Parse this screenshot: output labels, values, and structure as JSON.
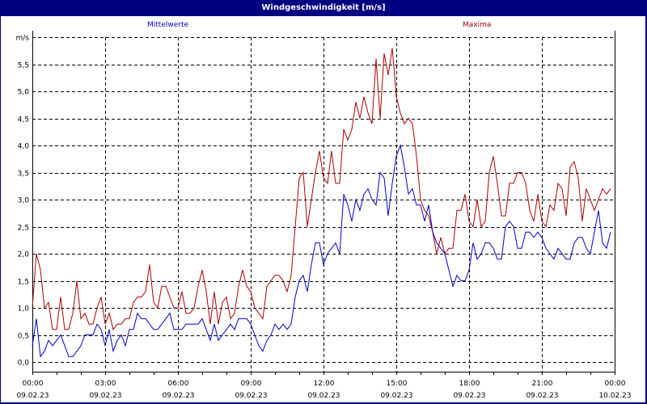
{
  "window": {
    "title": "Windgeschwindigkeit [m/s]"
  },
  "colors": {
    "frame": "#000080",
    "mean": "#0000cc",
    "max": "#aa0000",
    "grid": "#000000"
  },
  "chart_data": {
    "type": "line",
    "title": "Windgeschwindigkeit [m/s]",
    "xlabel": "",
    "ylabel": "m/s",
    "ylim": [
      0,
      6
    ],
    "grid": true,
    "legend_position": "top",
    "y_ticks": [
      "0,0",
      "0,5",
      "1,0",
      "1,5",
      "2,0",
      "2,5",
      "3,0",
      "3,5",
      "4,0",
      "4,5",
      "5,0",
      "5,5",
      "m/s"
    ],
    "x_ticks": [
      {
        "time": "00:00",
        "date": "09.02.23"
      },
      {
        "time": "03:00",
        "date": "09.02.23"
      },
      {
        "time": "06:00",
        "date": "09.02.23"
      },
      {
        "time": "09:00",
        "date": "09.02.23"
      },
      {
        "time": "12:00",
        "date": "09.02.23"
      },
      {
        "time": "15:00",
        "date": "09.02.23"
      },
      {
        "time": "18:00",
        "date": "09.02.23"
      },
      {
        "time": "21:00",
        "date": "09.02.23"
      },
      {
        "time": "00:00",
        "date": "10.02.23"
      }
    ],
    "x_interval_minutes": 10,
    "series": [
      {
        "name": "Mittelwerte",
        "color": "#0000cc",
        "values": [
          0.3,
          0.8,
          0.1,
          0.2,
          0.4,
          0.3,
          0.4,
          0.5,
          0.3,
          0.1,
          0.1,
          0.2,
          0.3,
          0.5,
          0.5,
          0.5,
          0.7,
          0.6,
          0.3,
          0.6,
          0.2,
          0.4,
          0.5,
          0.3,
          0.6,
          0.6,
          0.9,
          0.8,
          0.8,
          0.7,
          0.6,
          0.6,
          0.7,
          0.8,
          0.9,
          0.6,
          0.6,
          0.6,
          0.7,
          0.7,
          0.7,
          0.7,
          0.8,
          0.6,
          0.4,
          0.7,
          0.4,
          0.5,
          0.6,
          0.7,
          0.6,
          0.8,
          0.8,
          0.8,
          0.7,
          0.5,
          0.3,
          0.2,
          0.4,
          0.5,
          0.7,
          0.6,
          0.7,
          0.6,
          0.7,
          1.2,
          1.5,
          1.6,
          1.3,
          1.8,
          2.2,
          2.2,
          1.8,
          2.0,
          2.1,
          2.2,
          2.0,
          3.1,
          2.9,
          2.6,
          3.0,
          2.8,
          3.1,
          3.2,
          3.0,
          2.9,
          3.5,
          3.4,
          2.7,
          3.3,
          3.8,
          4.0,
          3.6,
          3.1,
          3.2,
          2.9,
          2.9,
          2.6,
          2.9,
          2.4,
          2.2,
          2.1,
          2.0,
          1.7,
          1.4,
          1.6,
          1.5,
          1.5,
          1.7,
          2.2,
          1.9,
          2.0,
          2.2,
          2.2,
          2.1,
          1.9,
          1.9,
          2.5,
          2.6,
          2.5,
          2.1,
          2.1,
          2.4,
          2.4,
          2.3,
          2.4,
          2.3,
          2.1,
          2.0,
          1.9,
          2.1,
          2.0,
          1.9,
          1.9,
          2.2,
          2.3,
          2.3,
          2.1,
          2.0,
          2.4,
          2.8,
          2.2,
          2.1,
          2.4
        ]
      },
      {
        "name": "Maxima",
        "color": "#aa0000",
        "values": [
          1.0,
          2.0,
          1.7,
          1.0,
          1.1,
          0.6,
          0.6,
          1.2,
          0.6,
          0.6,
          0.9,
          1.5,
          0.8,
          0.9,
          0.7,
          0.7,
          1.0,
          1.2,
          0.7,
          0.9,
          0.6,
          0.7,
          0.7,
          0.8,
          0.8,
          1.1,
          1.2,
          1.2,
          1.3,
          1.8,
          1.1,
          1.0,
          1.4,
          1.4,
          1.2,
          1.0,
          1.0,
          1.3,
          0.9,
          0.9,
          1.0,
          1.4,
          1.7,
          1.3,
          0.7,
          1.3,
          0.7,
          1.1,
          1.2,
          0.8,
          0.9,
          1.4,
          1.7,
          1.4,
          1.3,
          1.0,
          0.9,
          0.8,
          1.4,
          1.5,
          1.6,
          1.6,
          1.5,
          1.3,
          1.6,
          2.5,
          3.4,
          3.5,
          2.5,
          3.0,
          3.5,
          3.9,
          3.4,
          3.3,
          3.9,
          3.3,
          3.3,
          4.3,
          4.1,
          4.3,
          4.8,
          4.5,
          4.9,
          4.6,
          4.4,
          5.6,
          4.5,
          5.7,
          5.3,
          5.8,
          4.9,
          4.6,
          4.4,
          4.5,
          4.4,
          3.8,
          3.0,
          2.8,
          2.7,
          2.4,
          2.0,
          2.3,
          2.0,
          2.1,
          2.1,
          2.8,
          2.8,
          3.1,
          2.6,
          2.5,
          3.0,
          2.5,
          2.6,
          3.5,
          3.8,
          3.3,
          2.7,
          2.7,
          3.3,
          3.3,
          3.5,
          3.5,
          3.3,
          2.8,
          2.6,
          3.1,
          2.6,
          2.5,
          2.9,
          2.8,
          3.3,
          3.2,
          2.7,
          3.6,
          3.7,
          3.4,
          2.6,
          3.2,
          3.0,
          2.8,
          3.0,
          3.2,
          3.1,
          3.2
        ]
      }
    ]
  }
}
